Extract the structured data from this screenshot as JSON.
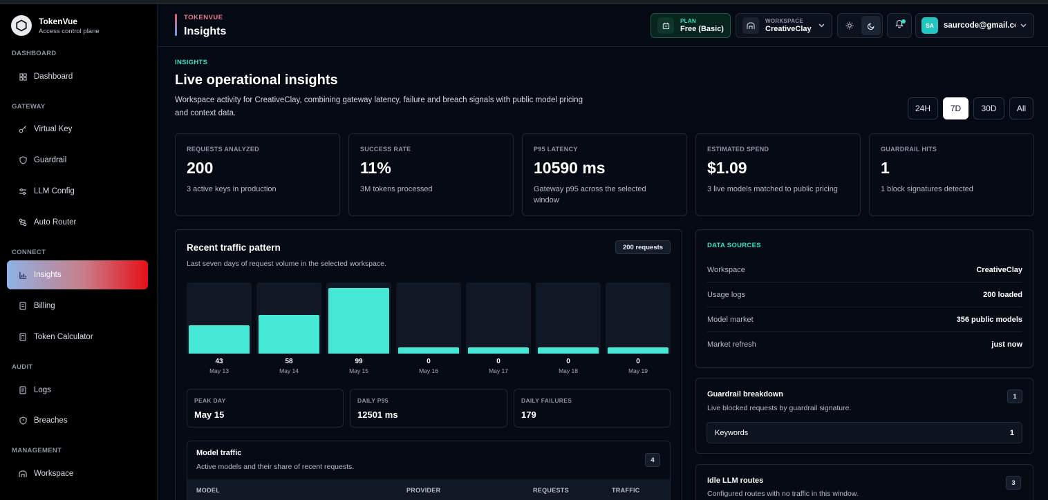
{
  "brand": {
    "name": "TokenVue",
    "subtitle": "Access control plane"
  },
  "sidebar": {
    "sections": {
      "dashboard": "DASHBOARD",
      "gateway": "GATEWAY",
      "connect": "CONNECT",
      "audit": "AUDIT",
      "management": "MANAGEMENT"
    },
    "items": {
      "dashboard": "Dashboard",
      "virtual_key": "Virtual Key",
      "guardrail": "Guardrail",
      "llm_config": "LLM Config",
      "auto_router": "Auto Router",
      "insights": "Insights",
      "billing": "Billing",
      "token_calculator": "Token Calculator",
      "logs": "Logs",
      "breaches": "Breaches",
      "workspace": "Workspace"
    },
    "active": "Insights"
  },
  "header": {
    "eyebrow": "TOKENVUE",
    "title": "Insights",
    "plan": {
      "caption": "PLAN",
      "value": "Free (Basic)"
    },
    "workspace": {
      "caption": "WORKSPACE",
      "value": "CreativeClay"
    },
    "user": {
      "initials": "SA",
      "email": "saurcode@gmail.com"
    }
  },
  "page": {
    "eyebrow": "INSIGHTS",
    "title": "Live operational insights",
    "description": "Workspace activity for CreativeClay, combining gateway latency, failure and breach signals with public model pricing and context data.",
    "ranges": [
      "24H",
      "7D",
      "30D",
      "All"
    ],
    "selected_range": "7D"
  },
  "stats": [
    {
      "caption": "REQUESTS ANALYZED",
      "value": "200",
      "sub": "3 active keys in production"
    },
    {
      "caption": "SUCCESS RATE",
      "value": "11%",
      "sub": "3M tokens processed"
    },
    {
      "caption": "P95 LATENCY",
      "value": "10590 ms",
      "sub": "Gateway p95 across the selected window"
    },
    {
      "caption": "ESTIMATED SPEND",
      "value": "$1.09",
      "sub": "3 live models matched to public pricing"
    },
    {
      "caption": "GUARDRAIL HITS",
      "value": "1",
      "sub": "1 block signatures detected"
    }
  ],
  "traffic": {
    "title": "Recent traffic pattern",
    "subtitle": "Last seven days of request volume in the selected workspace.",
    "badge": "200 requests",
    "summary": [
      {
        "caption": "PEAK DAY",
        "value": "May 15"
      },
      {
        "caption": "DAILY P95",
        "value": "12501 ms"
      },
      {
        "caption": "DAILY FAILURES",
        "value": "179"
      }
    ]
  },
  "chart_data": {
    "type": "bar",
    "categories": [
      "May 13",
      "May 14",
      "May 15",
      "May 16",
      "May 17",
      "May 18",
      "May 19"
    ],
    "values": [
      43,
      58,
      99,
      0,
      0,
      0,
      0
    ],
    "ylim": [
      0,
      100
    ],
    "title": "",
    "xlabel": "",
    "ylabel": "",
    "bar_color": "#45e8d5"
  },
  "model_traffic": {
    "title": "Model traffic",
    "subtitle": "Active models and their share of recent requests.",
    "badge": "4",
    "columns": [
      "MODEL",
      "PROVIDER",
      "REQUESTS",
      "TRAFFIC"
    ]
  },
  "data_sources": {
    "eyebrow": "DATA SOURCES",
    "rows": [
      {
        "key": "Workspace",
        "value": "CreativeClay"
      },
      {
        "key": "Usage logs",
        "value": "200 loaded"
      },
      {
        "key": "Model market",
        "value": "356 public models"
      },
      {
        "key": "Market refresh",
        "value": "just now"
      }
    ]
  },
  "guardrail_breakdown": {
    "title": "Guardrail breakdown",
    "subtitle": "Live blocked requests by guardrail signature.",
    "badge": "1",
    "rows": [
      {
        "label": "Keywords",
        "count": "1"
      }
    ]
  },
  "idle_routes": {
    "title": "Idle LLM routes",
    "subtitle": "Configured routes with no traffic in this window.",
    "badge": "3"
  },
  "colors": {
    "accent": "#45e8d5",
    "eyebrow": "#35e2c6",
    "header_eyebrow": "#e87b8b",
    "active_nav_start": "#8fb2e6",
    "active_nav_end": "#e60f18",
    "background": "#040913"
  }
}
